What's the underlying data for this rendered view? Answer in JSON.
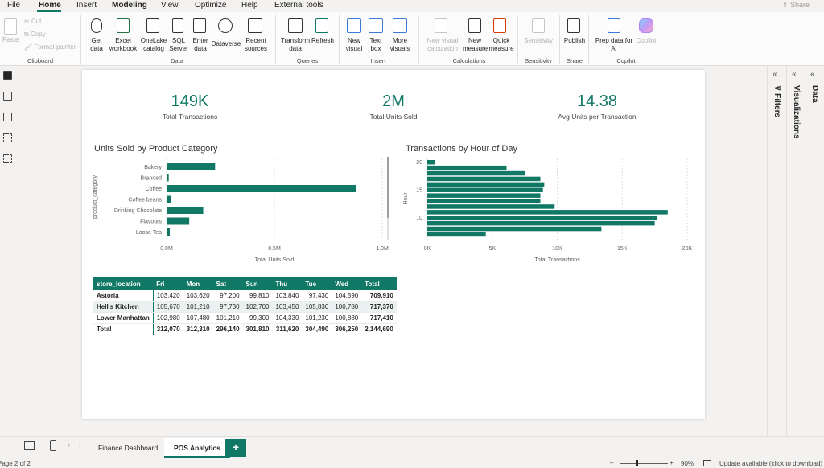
{
  "menu": {
    "items": [
      "File",
      "Home",
      "Insert",
      "Modeling",
      "View",
      "Optimize",
      "Help",
      "External tools"
    ],
    "active": "Home",
    "share": "Share"
  },
  "ribbon": {
    "clipboard": {
      "paste": "Paste",
      "cut": "Cut",
      "copy": "Copy",
      "format_painter": "Format painter",
      "group": "Clipboard"
    },
    "data": {
      "get_data": "Get data",
      "excel": "Excel workbook",
      "onelake": "OneLake catalog",
      "sql": "SQL Server",
      "enter": "Enter data",
      "dataverse": "Dataverse",
      "recent": "Recent sources",
      "group": "Data"
    },
    "queries": {
      "transform": "Transform data",
      "refresh": "Refresh",
      "group": "Queries"
    },
    "insert": {
      "new_visual": "New visual",
      "text_box": "Text box",
      "more_visuals": "More visuals",
      "group": "Insert"
    },
    "calculations": {
      "new_visual_calc": "New visual calculation",
      "new_measure": "New measure",
      "quick_measure": "Quick measure",
      "group": "Calculations"
    },
    "sensitivity": {
      "label": "Sensitivity",
      "group": "Sensitivity"
    },
    "share": {
      "publish": "Publish",
      "group": "Share"
    },
    "copilot": {
      "prep": "Prep data for AI",
      "copilot": "Copilot",
      "group": "Copilot"
    }
  },
  "kpis": [
    {
      "value": "149K",
      "label": "Total Transactions"
    },
    {
      "value": "2M",
      "label": "Total Units Sold"
    },
    {
      "value": "14.38",
      "label": "Avg Units per Transaction"
    }
  ],
  "chart_data": [
    {
      "type": "bar",
      "orientation": "horizontal",
      "title": "Units Sold by Product Category",
      "ylabel": "product_category",
      "xlabel": "Total Units Sold",
      "categories": [
        "Bakery",
        "Branded",
        "Coffee",
        "Coffee beans",
        "Drinking Chocolate",
        "Flavours",
        "Loose Tea"
      ],
      "values": [
        225000,
        10000,
        880000,
        20000,
        170000,
        105000,
        15000
      ],
      "xticks": [
        "0.0M",
        "0.5M",
        "1.0M"
      ],
      "xlim": [
        0,
        1000000
      ],
      "color": "#117865"
    },
    {
      "type": "bar",
      "orientation": "horizontal",
      "title": "Transactions by Hour of Day",
      "ylabel": "Hour",
      "xlabel": "Total Transactions",
      "categories": [
        20,
        19,
        18,
        17,
        16,
        15,
        14,
        13,
        12,
        11,
        10,
        9,
        8,
        7,
        6
      ],
      "values": [
        600,
        6100,
        7500,
        8700,
        9000,
        8900,
        8700,
        8700,
        9800,
        18500,
        17700,
        17500,
        13400,
        4500,
        0
      ],
      "ytick_labels": {
        "20": "20",
        "15": "15",
        "10": "10"
      },
      "xticks": [
        "0K",
        "5K",
        "10K",
        "15K",
        "20K"
      ],
      "xlim": [
        0,
        20000
      ],
      "color": "#117865"
    }
  ],
  "matrix": {
    "columns": [
      "store_location",
      "Fri",
      "Mon",
      "Sat",
      "Sun",
      "Thu",
      "Tue",
      "Wed",
      "Total"
    ],
    "rows": [
      [
        "Astoria",
        "103,420",
        "103,620",
        "97,200",
        "99,810",
        "103,840",
        "97,430",
        "104,590",
        "709,910"
      ],
      [
        "Hell's Kitchen",
        "105,670",
        "101,210",
        "97,730",
        "102,700",
        "103,450",
        "105,830",
        "100,780",
        "717,370"
      ],
      [
        "Lower Manhattan",
        "102,980",
        "107,480",
        "101,210",
        "99,300",
        "104,330",
        "101,230",
        "100,880",
        "717,410"
      ]
    ],
    "total": [
      "Total",
      "312,070",
      "312,310",
      "296,140",
      "301,810",
      "311,620",
      "304,490",
      "306,250",
      "2,144,690"
    ]
  },
  "panes": {
    "filters": "Filters",
    "visualizations": "Visualizations",
    "data": "Data"
  },
  "tabs": {
    "finance": "Finance Dashboard",
    "pos": "POS Analytics",
    "add": "+"
  },
  "status": {
    "page": "Page 2 of 2",
    "zoom": "90%",
    "update": "Update available (click to download)"
  },
  "colors": {
    "accent": "#117865"
  }
}
